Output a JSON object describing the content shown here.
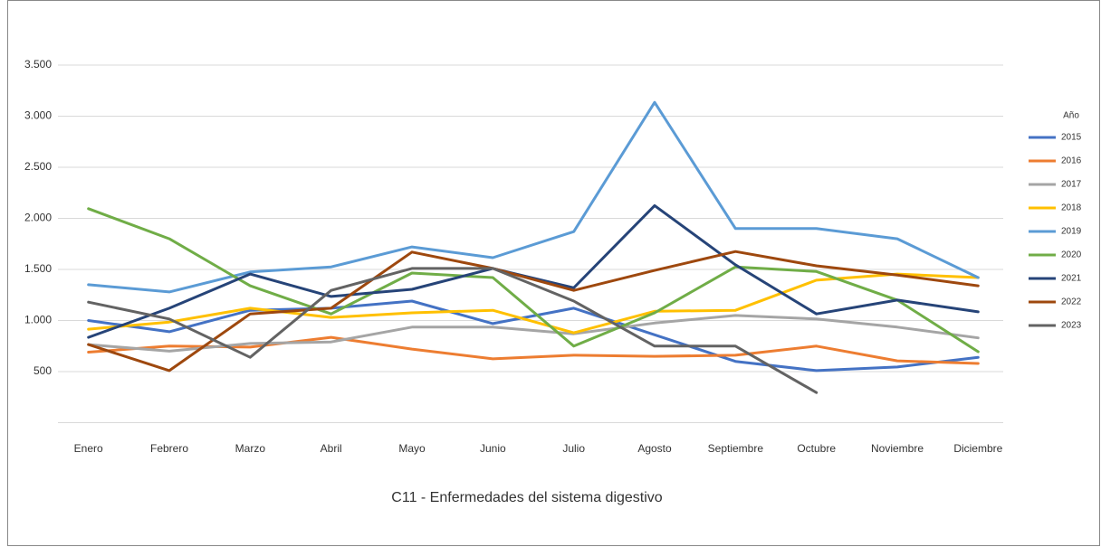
{
  "chart_data": {
    "type": "line",
    "title": "C11 - Enfermedades del sistema digestivo",
    "legend_title": "Año",
    "legend": "right",
    "categories": [
      "Enero",
      "Febrero",
      "Marzo",
      "Abril",
      "Mayo",
      "Junio",
      "Julio",
      "Agosto",
      "Septiembre",
      "Octubre",
      "Noviembre",
      "Diciembre"
    ],
    "ylim": [
      0,
      3500
    ],
    "yticks": [
      500,
      {
        "value": 1000,
        "label": "1.000"
      },
      {
        "value": 1500,
        "label": "1.500"
      },
      {
        "value": 2000,
        "label": "2.000"
      },
      {
        "value": 2500,
        "label": "2.500"
      },
      {
        "value": 3000,
        "label": "3.000"
      },
      {
        "value": 3500,
        "label": "3.500"
      }
    ],
    "grid": true,
    "series": [
      {
        "name": "2015",
        "color": "#4472c4",
        "values": [
          1000,
          890,
          1100,
          1120,
          1190,
          970,
          1120,
          860,
          600,
          510,
          545,
          640
        ]
      },
      {
        "name": "2016",
        "color": "#ed7d31",
        "values": [
          690,
          750,
          740,
          835,
          720,
          625,
          660,
          650,
          660,
          750,
          605,
          580
        ]
      },
      {
        "name": "2017",
        "color": "#a5a5a5",
        "values": [
          765,
          700,
          775,
          790,
          935,
          935,
          870,
          975,
          1050,
          1015,
          935,
          830
        ]
      },
      {
        "name": "2018",
        "color": "#ffc000",
        "values": [
          915,
          985,
          1120,
          1030,
          1075,
          1100,
          880,
          1090,
          1100,
          1395,
          1455,
          1420
        ]
      },
      {
        "name": "2019",
        "color": "#5b9bd5",
        "values": [
          1350,
          1280,
          1475,
          1525,
          1720,
          1615,
          1870,
          3135,
          1900,
          1900,
          1800,
          1420
        ]
      },
      {
        "name": "2020",
        "color": "#70ad47",
        "values": [
          2095,
          1800,
          1340,
          1065,
          1465,
          1420,
          750,
          1075,
          1525,
          1480,
          1200,
          695
        ]
      },
      {
        "name": "2021",
        "color": "#264478",
        "values": [
          835,
          1120,
          1455,
          1235,
          1305,
          1510,
          1320,
          2125,
          1545,
          1065,
          1200,
          1085
        ]
      },
      {
        "name": "2022",
        "color": "#9e480e",
        "values": [
          765,
          510,
          1065,
          1120,
          1670,
          1510,
          1295,
          1490,
          1675,
          1535,
          1445,
          1340
        ]
      },
      {
        "name": "2023",
        "color": "#636363",
        "values": [
          1180,
          1015,
          640,
          1295,
          1510,
          1510,
          1190,
          750,
          750,
          295,
          null,
          null
        ]
      }
    ]
  }
}
